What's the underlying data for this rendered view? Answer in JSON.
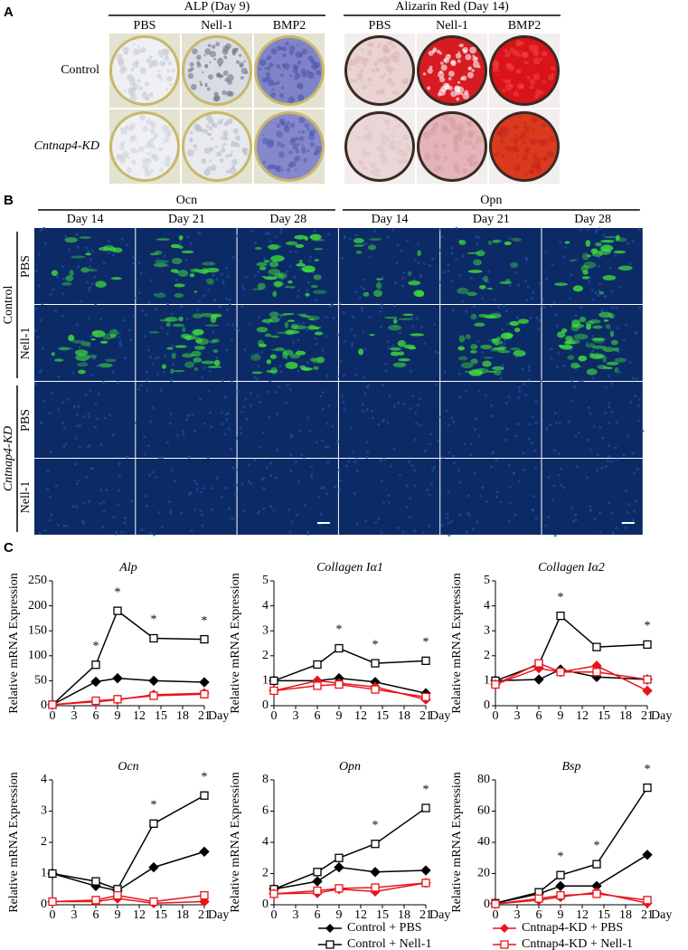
{
  "figure": {
    "panel_a": {
      "label": "A",
      "groups": [
        {
          "title": "ALP (Day 9)",
          "columns": [
            "PBS",
            "Nell-1",
            "BMP2"
          ]
        },
        {
          "title": "Alizarin Red (Day 14)",
          "columns": [
            "PBS",
            "Nell-1",
            "BMP2"
          ]
        }
      ],
      "rows": [
        "Control",
        "Cntnap4-KD"
      ]
    },
    "panel_b": {
      "label": "B",
      "groups": [
        {
          "title": "Ocn",
          "columns": [
            "Day 14",
            "Day 21",
            "Day 28"
          ]
        },
        {
          "title": "Opn",
          "columns": [
            "Day 14",
            "Day 21",
            "Day 28"
          ]
        }
      ],
      "row_groups": [
        {
          "title": "Control",
          "rows": [
            "PBS",
            "Nell-1"
          ]
        },
        {
          "title": "Cntnap4-KD",
          "rows": [
            "PBS",
            "Nell-1"
          ]
        }
      ]
    },
    "panel_c": {
      "label": "C"
    }
  },
  "chart_data": [
    {
      "type": "line",
      "title": "Alp",
      "y_label": "Relative mRNA Expression",
      "x_label": "Day",
      "x": [
        0,
        6,
        9,
        14,
        21
      ],
      "xlim": [
        0,
        21
      ],
      "xticks": [
        0,
        3,
        6,
        9,
        12,
        15,
        18,
        21
      ],
      "ylim": [
        0,
        250
      ],
      "yticks": [
        0,
        50,
        100,
        150,
        200,
        250
      ],
      "series": [
        {
          "name": "Control + PBS",
          "color": "#000000",
          "marker": "diamond",
          "values": [
            2,
            48,
            55,
            50,
            47
          ]
        },
        {
          "name": "Control + Nell-1",
          "color": "#000000",
          "marker": "square-open",
          "values": [
            2,
            82,
            190,
            135,
            133
          ]
        },
        {
          "name": "Cntnap4-KD + PBS",
          "color": "#e8141b",
          "marker": "diamond",
          "values": [
            2,
            8,
            12,
            22,
            25
          ]
        },
        {
          "name": "Cntnap4-KD + Nell-1",
          "color": "#e8141b",
          "marker": "square-open",
          "values": [
            2,
            10,
            13,
            20,
            23
          ]
        }
      ],
      "annotations": [
        {
          "text": "*",
          "x": 6
        },
        {
          "text": "*",
          "x": 9
        },
        {
          "text": "*",
          "x": 14
        },
        {
          "text": "*",
          "x": 21
        }
      ],
      "legend": "bottom"
    },
    {
      "type": "line",
      "title": "Collagen Iα1",
      "y_label": "Relative mRNA Expression",
      "x_label": "Day",
      "x": [
        0,
        6,
        9,
        14,
        21
      ],
      "xlim": [
        0,
        21
      ],
      "xticks": [
        0,
        3,
        6,
        9,
        12,
        15,
        18,
        21
      ],
      "ylim": [
        0,
        5
      ],
      "yticks": [
        0,
        1,
        2,
        3,
        4,
        5
      ],
      "series": [
        {
          "color": "#000000",
          "marker": "diamond",
          "values": [
            1,
            1,
            1.1,
            0.95,
            0.5
          ]
        },
        {
          "color": "#000000",
          "marker": "square-open",
          "values": [
            1,
            1.65,
            2.3,
            1.7,
            1.8
          ]
        },
        {
          "color": "#e8141b",
          "marker": "diamond",
          "values": [
            0.6,
            1,
            0.9,
            0.75,
            0.25
          ]
        },
        {
          "color": "#e8141b",
          "marker": "square-open",
          "values": [
            0.6,
            0.8,
            0.85,
            0.65,
            0.35
          ]
        }
      ],
      "annotations": [
        {
          "text": "*",
          "x": 9
        },
        {
          "text": "*",
          "x": 14
        },
        {
          "text": "*",
          "x": 21
        }
      ]
    },
    {
      "type": "line",
      "title": "Collagen Iα2",
      "y_label": "Relative mRNA Expression",
      "x_label": "Day",
      "x": [
        0,
        6,
        9,
        14,
        21
      ],
      "xlim": [
        0,
        21
      ],
      "xticks": [
        0,
        3,
        6,
        9,
        12,
        15,
        18,
        21
      ],
      "ylim": [
        0,
        5
      ],
      "yticks": [
        0,
        1,
        2,
        3,
        4,
        5
      ],
      "series": [
        {
          "color": "#000000",
          "marker": "diamond",
          "values": [
            1,
            1.05,
            1.45,
            1.15,
            1.05
          ]
        },
        {
          "color": "#000000",
          "marker": "square-open",
          "values": [
            1,
            1.65,
            3.6,
            2.35,
            2.45
          ]
        },
        {
          "color": "#e8141b",
          "marker": "diamond",
          "values": [
            0.85,
            1.5,
            1.35,
            1.6,
            0.6
          ]
        },
        {
          "color": "#e8141b",
          "marker": "square-open",
          "values": [
            0.85,
            1.7,
            1.35,
            1.35,
            1.05
          ]
        }
      ],
      "annotations": [
        {
          "text": "*",
          "x": 9
        },
        {
          "text": "*",
          "x": 21
        }
      ]
    },
    {
      "type": "line",
      "title": "Ocn",
      "y_label": "Relative mRNA Expression",
      "x_label": "Day",
      "x": [
        0,
        6,
        9,
        14,
        21
      ],
      "xlim": [
        0,
        21
      ],
      "xticks": [
        0,
        3,
        6,
        9,
        12,
        15,
        18,
        21
      ],
      "ylim": [
        0,
        4
      ],
      "yticks": [
        0,
        1,
        2,
        3,
        4
      ],
      "series": [
        {
          "color": "#000000",
          "marker": "diamond",
          "values": [
            1,
            0.6,
            0.45,
            1.2,
            1.7
          ]
        },
        {
          "color": "#000000",
          "marker": "square-open",
          "values": [
            1,
            0.75,
            0.5,
            2.6,
            3.5
          ]
        },
        {
          "color": "#e8141b",
          "marker": "diamond",
          "values": [
            0.1,
            0.1,
            0.2,
            0.05,
            0.1
          ]
        },
        {
          "color": "#e8141b",
          "marker": "square-open",
          "values": [
            0.1,
            0.15,
            0.3,
            0.1,
            0.3
          ]
        }
      ],
      "annotations": [
        {
          "text": "*",
          "x": 14
        },
        {
          "text": "*",
          "x": 21
        }
      ]
    },
    {
      "type": "line",
      "title": "Opn",
      "y_label": "Relative mRNA Expression",
      "x_label": "Day",
      "x": [
        0,
        6,
        9,
        14,
        21
      ],
      "xlim": [
        0,
        21
      ],
      "xticks": [
        0,
        3,
        6,
        9,
        12,
        15,
        18,
        21
      ],
      "ylim": [
        0,
        8
      ],
      "yticks": [
        0,
        2,
        4,
        6,
        8
      ],
      "series": [
        {
          "color": "#000000",
          "marker": "diamond",
          "values": [
            1,
            1.5,
            2.4,
            2.1,
            2.2
          ]
        },
        {
          "color": "#000000",
          "marker": "square-open",
          "values": [
            1,
            2.1,
            3,
            3.9,
            6.2
          ]
        },
        {
          "color": "#e8141b",
          "marker": "diamond",
          "values": [
            0.7,
            0.75,
            1,
            0.85,
            1.4
          ]
        },
        {
          "color": "#e8141b",
          "marker": "square-open",
          "values": [
            0.7,
            0.9,
            1.05,
            1.1,
            1.4
          ]
        }
      ],
      "annotations": [
        {
          "text": "*",
          "x": 14
        },
        {
          "text": "*",
          "x": 21
        }
      ]
    },
    {
      "type": "line",
      "title": "Bsp",
      "y_label": "Relative mRNA Expression",
      "x_label": "Day",
      "x": [
        0,
        6,
        9,
        14,
        21
      ],
      "xlim": [
        0,
        21
      ],
      "xticks": [
        0,
        3,
        6,
        9,
        12,
        15,
        18,
        21
      ],
      "ylim": [
        0,
        80
      ],
      "yticks": [
        0,
        20,
        40,
        60,
        80
      ],
      "series": [
        {
          "color": "#000000",
          "marker": "diamond",
          "values": [
            1,
            7,
            12,
            12,
            32
          ]
        },
        {
          "color": "#000000",
          "marker": "square-open",
          "values": [
            1,
            8,
            19,
            26,
            75
          ]
        },
        {
          "color": "#e8141b",
          "marker": "diamond",
          "values": [
            0.5,
            3,
            5,
            8,
            1
          ]
        },
        {
          "color": "#e8141b",
          "marker": "square-open",
          "values": [
            0.5,
            4,
            6,
            7,
            3
          ]
        }
      ],
      "annotations": [
        {
          "text": "*",
          "x": 9
        },
        {
          "text": "*",
          "x": 14
        },
        {
          "text": "*",
          "x": 21
        }
      ]
    }
  ]
}
